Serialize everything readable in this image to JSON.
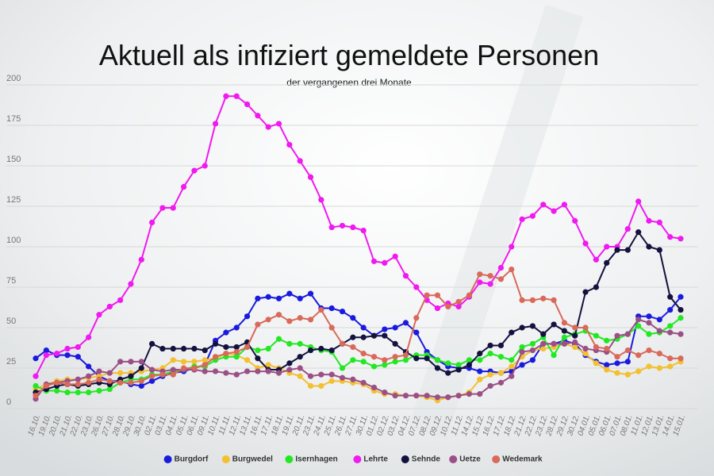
{
  "chart_data": {
    "type": "line",
    "title": "Aktuell als infiziert gemeldete Personen",
    "subtitle": "der vergangenen drei Monate",
    "categories": [
      "16.10.",
      "19.10.",
      "20.10.",
      "21.10.",
      "22.10.",
      "23.10.",
      "26.10.",
      "27.10.",
      "28.10.",
      "29.10.",
      "30.10.",
      "02.11.",
      "03.11.",
      "04.11.",
      "05.11.",
      "06.11.",
      "09.11.",
      "10.11.",
      "11.11.",
      "12.11.",
      "13.11.",
      "16.11.",
      "17.11.",
      "18.11.",
      "19.11.",
      "20.11.",
      "23.11.",
      "24.11.",
      "25.11.",
      "26.11.",
      "27.11.",
      "30.11.",
      "01.12.",
      "02.12.",
      "03.12.",
      "04.12.",
      "07.12.",
      "08.12.",
      "09.12.",
      "10.12.",
      "11.12.",
      "14.12.",
      "15.12.",
      "16.12.",
      "17.12.",
      "18.12.",
      "21.12.",
      "22.12.",
      "23.12.",
      "28.12.",
      "29.12.",
      "30.12.",
      "04.01.",
      "05.01.",
      "06.01.",
      "07.01.",
      "08.01.",
      "11.01.",
      "12.01.",
      "13.01.",
      "14.01.",
      "15.01."
    ],
    "series": [
      {
        "name": "Burgdorf",
        "color": "#1a1adf",
        "values": [
          31,
          36,
          33,
          33,
          32,
          26,
          20,
          17,
          17,
          15,
          14,
          17,
          20,
          22,
          23,
          25,
          27,
          42,
          47,
          50,
          57,
          68,
          69,
          68,
          71,
          68,
          71,
          62,
          62,
          60,
          56,
          50,
          45,
          49,
          50,
          53,
          47,
          35,
          30,
          26,
          25,
          25,
          23,
          23,
          22,
          23,
          27,
          30,
          40,
          40,
          42,
          40,
          33,
          29,
          27,
          28,
          29,
          57,
          57,
          55,
          61,
          69
        ]
      },
      {
        "name": "Burgwedel",
        "color": "#f3c030",
        "values": [
          12,
          15,
          17,
          18,
          18,
          19,
          20,
          22,
          22,
          22,
          23,
          24,
          25,
          30,
          29,
          29,
          30,
          31,
          34,
          33,
          30,
          25,
          27,
          25,
          22,
          20,
          14,
          14,
          17,
          17,
          16,
          15,
          11,
          9,
          9,
          8,
          8,
          7,
          5,
          7,
          8,
          10,
          18,
          21,
          22,
          26,
          32,
          36,
          37,
          38,
          40,
          38,
          34,
          28,
          24,
          22,
          21,
          23,
          26,
          25,
          26,
          29
        ]
      },
      {
        "name": "Isernhagen",
        "color": "#22e822",
        "values": [
          14,
          11,
          11,
          10,
          10,
          10,
          11,
          12,
          16,
          18,
          18,
          21,
          21,
          23,
          24,
          26,
          26,
          30,
          32,
          32,
          38,
          36,
          37,
          43,
          40,
          40,
          38,
          36,
          35,
          25,
          30,
          29,
          26,
          27,
          29,
          30,
          33,
          33,
          30,
          28,
          27,
          30,
          30,
          34,
          32,
          30,
          38,
          40,
          44,
          33,
          44,
          46,
          48,
          45,
          42,
          43,
          46,
          51,
          46,
          47,
          51,
          56
        ]
      },
      {
        "name": "Lehrte",
        "color": "#f019f0",
        "values": [
          20,
          33,
          34,
          37,
          38,
          44,
          58,
          63,
          67,
          77,
          92,
          115,
          124,
          124,
          137,
          147,
          150,
          176,
          193,
          193,
          188,
          181,
          174,
          176,
          163,
          153,
          143,
          129,
          112,
          113,
          112,
          110,
          91,
          90,
          94,
          82,
          75,
          67,
          62,
          65,
          63,
          69,
          78,
          77,
          87,
          100,
          117,
          119,
          126,
          122,
          126,
          116,
          102,
          92,
          100,
          100,
          111,
          128,
          116,
          115,
          106,
          105
        ]
      },
      {
        "name": "Sehnde",
        "color": "#13123f",
        "values": [
          10,
          12,
          14,
          15,
          14,
          15,
          16,
          15,
          18,
          20,
          25,
          40,
          37,
          37,
          37,
          37,
          36,
          40,
          38,
          38,
          41,
          31,
          24,
          24,
          28,
          32,
          36,
          37,
          36,
          40,
          44,
          44,
          45,
          45,
          40,
          35,
          31,
          31,
          25,
          22,
          24,
          27,
          34,
          39,
          39,
          47,
          50,
          51,
          46,
          52,
          48,
          45,
          72,
          75,
          90,
          98,
          98,
          109,
          100,
          98,
          69,
          61
        ]
      },
      {
        "name": "Uetze",
        "color": "#9b4f87",
        "values": [
          6,
          15,
          16,
          17,
          18,
          20,
          23,
          22,
          29,
          29,
          29,
          24,
          23,
          24,
          24,
          24,
          23,
          23,
          22,
          21,
          23,
          23,
          23,
          22,
          24,
          25,
          20,
          21,
          21,
          19,
          18,
          16,
          13,
          10,
          8,
          8,
          8,
          8,
          7,
          7,
          8,
          9,
          9,
          14,
          16,
          20,
          35,
          36,
          40,
          40,
          40,
          41,
          37,
          36,
          35,
          45,
          46,
          55,
          53,
          48,
          47,
          46
        ]
      },
      {
        "name": "Wedemark",
        "color": "#d9695a",
        "values": [
          8,
          14,
          16,
          15,
          15,
          16,
          18,
          17,
          16,
          16,
          17,
          20,
          21,
          21,
          25,
          25,
          27,
          32,
          34,
          35,
          38,
          52,
          55,
          58,
          54,
          56,
          55,
          61,
          50,
          40,
          38,
          34,
          32,
          30,
          32,
          33,
          56,
          70,
          70,
          63,
          66,
          70,
          83,
          82,
          80,
          86,
          67,
          67,
          68,
          67,
          53,
          50,
          50,
          38,
          37,
          32,
          36,
          33,
          36,
          34,
          31,
          31
        ]
      }
    ],
    "ylim": [
      0,
      200
    ],
    "yticks": [
      0,
      25,
      50,
      75,
      100,
      125,
      150,
      175,
      200
    ],
    "grid": true,
    "legend": "bottom"
  }
}
